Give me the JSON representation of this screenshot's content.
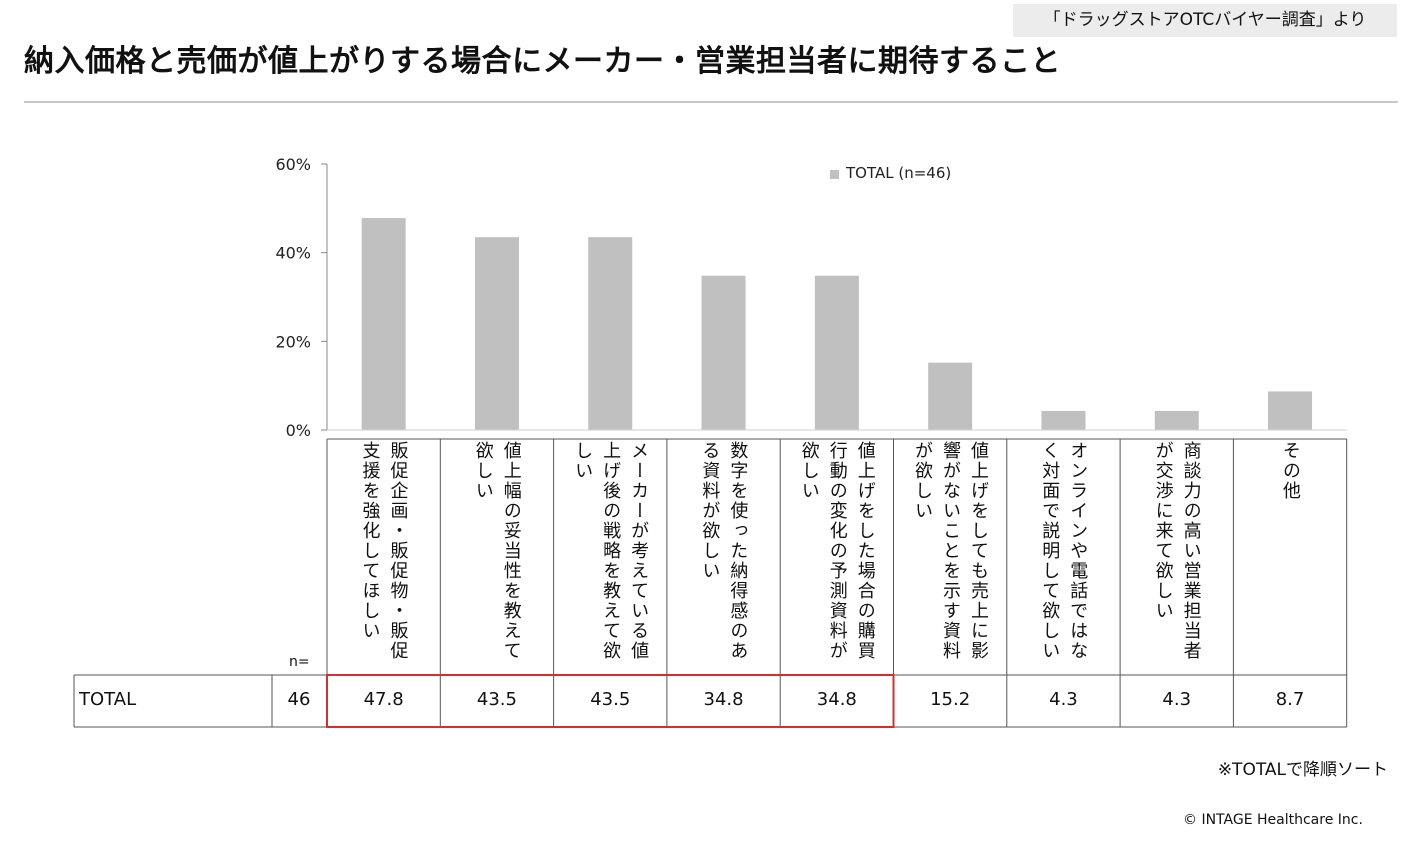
{
  "source": "「ドラッグストアOTCバイヤー調査」より",
  "title": "納入価格と売価が値上がりする場合にメーカー・営業担当者に期待すること",
  "table": {
    "n_label": "n=",
    "row_label": "TOTAL",
    "row_n": "46"
  },
  "note": "※TOTALで降順ソート",
  "copyright": "© INTAGE Healthcare Inc.",
  "colors": {
    "bar": "#c0c0c0",
    "highlight": "#d32f2f",
    "grid": "#888888"
  },
  "chart_data": {
    "type": "bar",
    "title": "納入価格と売価が値上がりする場合にメーカー・営業担当者に期待すること",
    "ylabel": "",
    "xlabel": "",
    "ylim": [
      0,
      60
    ],
    "yticks": [
      "0%",
      "20%",
      "40%",
      "60%"
    ],
    "legend_position": "top-right",
    "categories": [
      "販促企画・販促物・販促支援を強化してほしい",
      "値上幅の妥当性を教えて欲しい",
      "メーカーが考えている値上げ後の戦略を教えて欲しい",
      "数字を使った納得感のある資料が欲しい",
      "値上げをした場合の購買行動の変化の予測資料が欲しい",
      "値上げをしても売上に影響がないことを示す資料が欲しい",
      "オンラインや電話ではなく対面で説明して欲しい",
      "商談力の高い営業担当者が交渉に来て欲しい",
      "その他"
    ],
    "series": [
      {
        "name": "TOTAL (n=46)",
        "values": [
          47.8,
          43.5,
          43.5,
          34.8,
          34.8,
          15.2,
          4.3,
          4.3,
          8.7
        ],
        "labels": [
          "47.8",
          "43.5",
          "43.5",
          "34.8",
          "34.8",
          "15.2",
          "4.3",
          "4.3",
          "8.7"
        ]
      }
    ],
    "highlighted_range": [
      0,
      4
    ]
  }
}
